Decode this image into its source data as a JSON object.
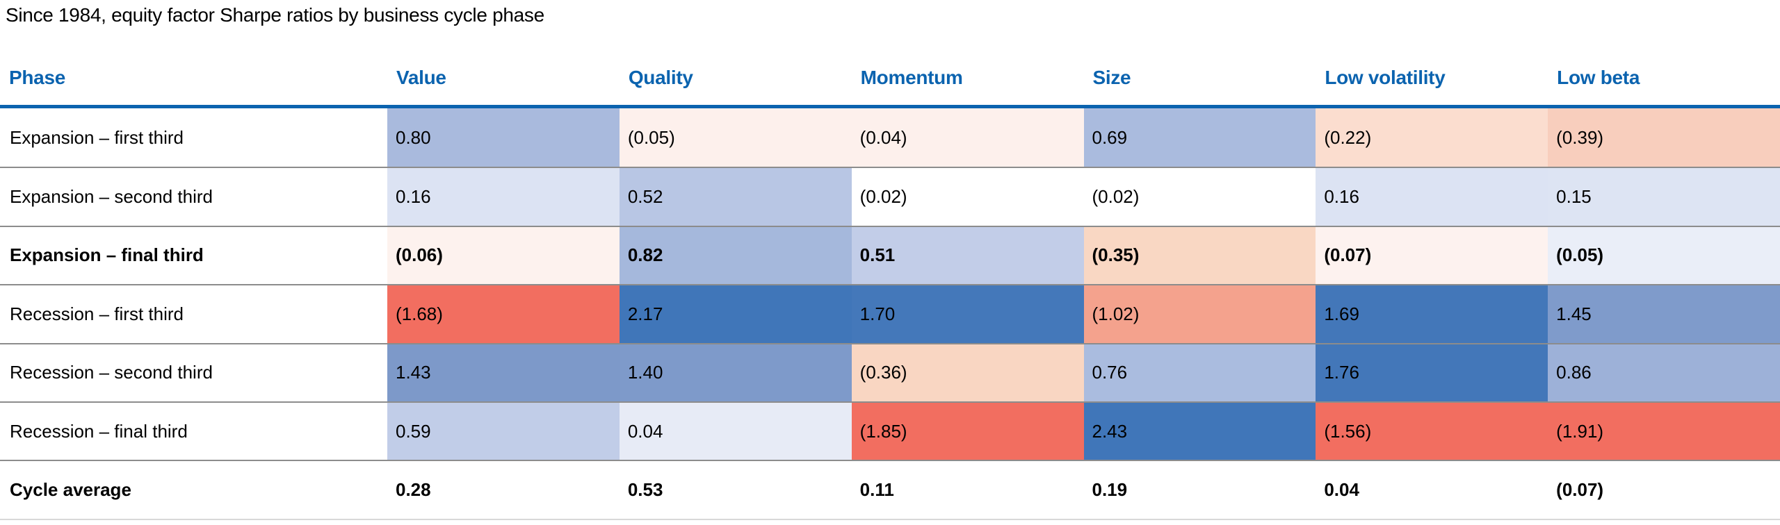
{
  "title": "Since 1984, equity factor Sharpe ratios by business cycle phase",
  "colors": {
    "header_text": "#0b63af",
    "header_underline": "#0b63af",
    "row_separator": "#8c8c8c",
    "bottom_border": "#d8d8d8",
    "positive_strong": "#4076b9",
    "negative_strong": "#f26e60",
    "body_text": "#000000"
  },
  "table": {
    "columns": [
      "Phase",
      "Value",
      "Quality",
      "Momentum",
      "Size",
      "Low volatility",
      "Low beta"
    ],
    "rows": [
      {
        "label": "Expansion – first third",
        "bold": false,
        "cells": [
          {
            "text": "0.80",
            "bg": "#a9badd"
          },
          {
            "text": "(0.05)",
            "bg": "#fdf0ec"
          },
          {
            "text": "(0.04)",
            "bg": "#fdf0ec"
          },
          {
            "text": "0.69",
            "bg": "#aabbde"
          },
          {
            "text": "(0.22)",
            "bg": "#fbddcf"
          },
          {
            "text": "(0.39)",
            "bg": "#f8cebd"
          }
        ]
      },
      {
        "label": "Expansion – second third",
        "bold": false,
        "cells": [
          {
            "text": "0.16",
            "bg": "#dce3f3"
          },
          {
            "text": "0.52",
            "bg": "#b8c6e4"
          },
          {
            "text": "(0.02)",
            "bg": "#ffffff"
          },
          {
            "text": "(0.02)",
            "bg": "#ffffff"
          },
          {
            "text": "0.16",
            "bg": "#dce3f3"
          },
          {
            "text": "0.15",
            "bg": "#dde4f3"
          }
        ]
      },
      {
        "label": "Expansion – final third",
        "bold": true,
        "cells": [
          {
            "text": "(0.06)",
            "bg": "#fdf2ee"
          },
          {
            "text": "0.82",
            "bg": "#a5b8dc"
          },
          {
            "text": "0.51",
            "bg": "#c2cde8"
          },
          {
            "text": "(0.35)",
            "bg": "#f9d7c3"
          },
          {
            "text": "(0.07)",
            "bg": "#fdf2ef"
          },
          {
            "text": "(0.05)",
            "bg": "#eaeef8"
          }
        ]
      },
      {
        "label": "Recession – first third",
        "bold": false,
        "cells": [
          {
            "text": "(1.68)",
            "bg": "#f26e60"
          },
          {
            "text": "2.17",
            "bg": "#4076b9"
          },
          {
            "text": "1.70",
            "bg": "#4478ba"
          },
          {
            "text": "(1.02)",
            "bg": "#f4a28d"
          },
          {
            "text": "1.69",
            "bg": "#4377b9"
          },
          {
            "text": "1.45",
            "bg": "#7f9bcb"
          }
        ]
      },
      {
        "label": "Recession – second third",
        "bold": false,
        "cells": [
          {
            "text": "1.43",
            "bg": "#7d99c9"
          },
          {
            "text": "1.40",
            "bg": "#7e9aca"
          },
          {
            "text": "(0.36)",
            "bg": "#f9d6c2"
          },
          {
            "text": "0.76",
            "bg": "#aabcdf"
          },
          {
            "text": "1.76",
            "bg": "#4377b9"
          },
          {
            "text": "0.86",
            "bg": "#9db1d8"
          }
        ]
      },
      {
        "label": "Recession – final third",
        "bold": false,
        "cells": [
          {
            "text": "0.59",
            "bg": "#c1cde8"
          },
          {
            "text": "0.04",
            "bg": "#e7ebf6"
          },
          {
            "text": "(1.85)",
            "bg": "#f26e60"
          },
          {
            "text": "2.43",
            "bg": "#4076b9"
          },
          {
            "text": "(1.56)",
            "bg": "#f26e60"
          },
          {
            "text": "(1.91)",
            "bg": "#f26e60"
          }
        ]
      },
      {
        "label": "Cycle average",
        "bold": true,
        "cells": [
          {
            "text": "0.28",
            "bg": "#ffffff"
          },
          {
            "text": "0.53",
            "bg": "#ffffff"
          },
          {
            "text": "0.11",
            "bg": "#ffffff"
          },
          {
            "text": "0.19",
            "bg": "#ffffff"
          },
          {
            "text": "0.04",
            "bg": "#ffffff"
          },
          {
            "text": "(0.07)",
            "bg": "#ffffff"
          }
        ]
      }
    ]
  },
  "chart_data": {
    "type": "heatmap",
    "title": "Since 1984, equity factor Sharpe ratios by business cycle phase",
    "columns": [
      "Value",
      "Quality",
      "Momentum",
      "Size",
      "Low volatility",
      "Low beta"
    ],
    "row_labels": [
      "Expansion – first third",
      "Expansion – second third",
      "Expansion – final third",
      "Recession – first third",
      "Recession – second third",
      "Recession – final third",
      "Cycle average"
    ],
    "values": [
      [
        0.8,
        -0.05,
        -0.04,
        0.69,
        -0.22,
        -0.39
      ],
      [
        0.16,
        0.52,
        -0.02,
        -0.02,
        0.16,
        0.15
      ],
      [
        -0.06,
        0.82,
        0.51,
        -0.35,
        -0.07,
        -0.05
      ],
      [
        -1.68,
        2.17,
        1.7,
        -1.02,
        1.69,
        1.45
      ],
      [
        1.43,
        1.4,
        -0.36,
        0.76,
        1.76,
        0.86
      ],
      [
        0.59,
        0.04,
        -1.85,
        2.43,
        -1.56,
        -1.91
      ],
      [
        0.28,
        0.53,
        0.11,
        0.19,
        0.04,
        -0.07
      ]
    ],
    "colormap": "diverging blue (positive) to red (negative), white near zero",
    "notes": "negative values shown in parentheses; 'Expansion - final third' and 'Cycle average' rows bold; 'Cycle average' row has no heat coloring"
  }
}
